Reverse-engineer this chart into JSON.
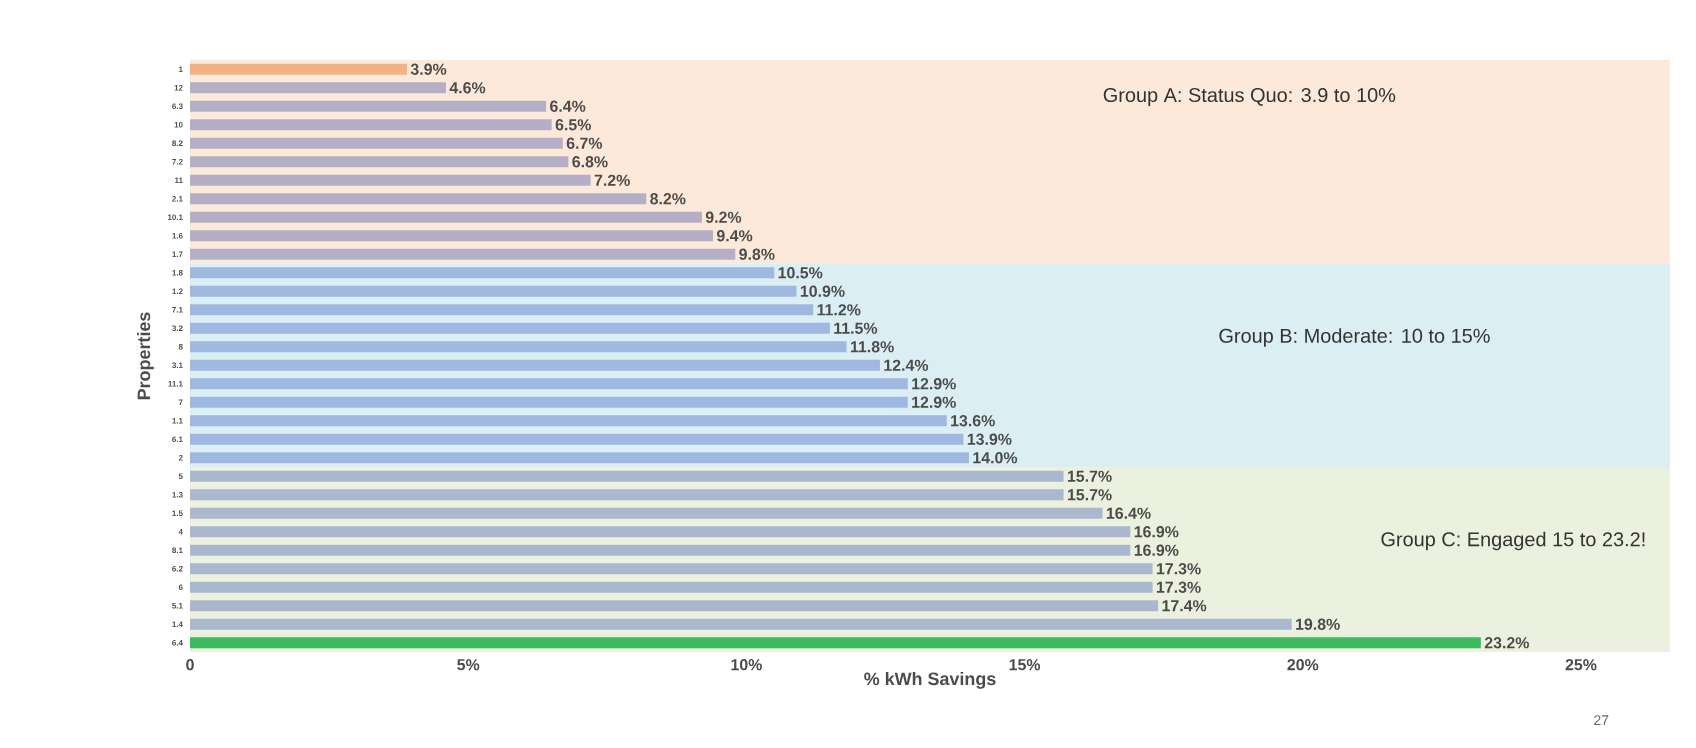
{
  "chart_data": {
    "type": "bar",
    "orientation": "horizontal",
    "xlabel": "% kWh Savings",
    "ylabel": "Properties",
    "categories": [
      "1",
      "12",
      "6.3",
      "10",
      "8.2",
      "7.2",
      "11",
      "2.1",
      "10.1",
      "1.6",
      "1.7",
      "1.8",
      "1.2",
      "7.1",
      "3.2",
      "8",
      "3.1",
      "11.1",
      "7",
      "1.1",
      "6.1",
      "2",
      "5",
      "1.3",
      "1.5",
      "4",
      "8.1",
      "6.2",
      "6",
      "5.1",
      "1.4",
      "6.4"
    ],
    "values": [
      3.9,
      4.6,
      6.4,
      6.5,
      6.7,
      6.8,
      7.2,
      8.2,
      9.2,
      9.4,
      9.8,
      10.5,
      10.9,
      11.2,
      11.5,
      11.8,
      12.4,
      12.9,
      12.9,
      13.6,
      13.9,
      14.0,
      15.7,
      15.7,
      16.4,
      16.9,
      16.9,
      17.3,
      17.3,
      17.4,
      19.8,
      23.2
    ],
    "value_labels": [
      "3.9%",
      "4.6%",
      "6.4%",
      "6.5%",
      "6.7%",
      "6.8%",
      "7.2%",
      "8.2%",
      "9.2%",
      "9.4%",
      "9.8%",
      "10.5%",
      "10.9%",
      "11.2%",
      "11.5%",
      "11.8%",
      "12.4%",
      "12.9%",
      "12.9%",
      "13.6%",
      "13.9%",
      "14.0%",
      "15.7%",
      "15.7%",
      "16.4%",
      "16.9%",
      "16.9%",
      "17.3%",
      "17.3%",
      "17.4%",
      "19.8%",
      "23.2%"
    ],
    "colors": [
      "#f4b183",
      "#b4aec6",
      "#b4aec6",
      "#b4aec6",
      "#b4aec6",
      "#b4aec6",
      "#b4aec6",
      "#b4aec6",
      "#b4aec6",
      "#b4aec6",
      "#b4aec6",
      "#9fb8df",
      "#9fb8df",
      "#9fb8df",
      "#9fb8df",
      "#9fb8df",
      "#9fb8df",
      "#9fb8df",
      "#9fb8df",
      "#9fb8df",
      "#9fb8df",
      "#9fb8df",
      "#a9b7cf",
      "#a9b7cf",
      "#a9b7cf",
      "#a9b7cf",
      "#a9b7cf",
      "#a9b7cf",
      "#a9b7cf",
      "#a9b7cf",
      "#a9b7cf",
      "#3dba5e"
    ],
    "xlim": [
      0,
      26.6
    ],
    "xticks": [
      0,
      {
        "value": 5,
        "label": "5%"
      },
      {
        "value": 10,
        "label": "10%"
      },
      {
        "value": 15,
        "label": "15%"
      },
      {
        "value": 20,
        "label": "20%"
      },
      {
        "value": 25,
        "label": "25%"
      }
    ],
    "bands": [
      {
        "axis": "y",
        "from": "1",
        "to": "1.7",
        "label": "Group A: Status Quo: 3.9 to 10%",
        "color": "#fde9d9"
      },
      {
        "axis": "y",
        "from": "1.8",
        "to": "2",
        "label": "Group B: Moderate: 10 to 15%",
        "color": "#daeef3"
      },
      {
        "axis": "y",
        "from": "5",
        "to": "6.4",
        "label": "Group C: Engaged 15 to 23.2!",
        "color": "#ebf1de"
      }
    ],
    "annotations": [
      "27"
    ]
  }
}
